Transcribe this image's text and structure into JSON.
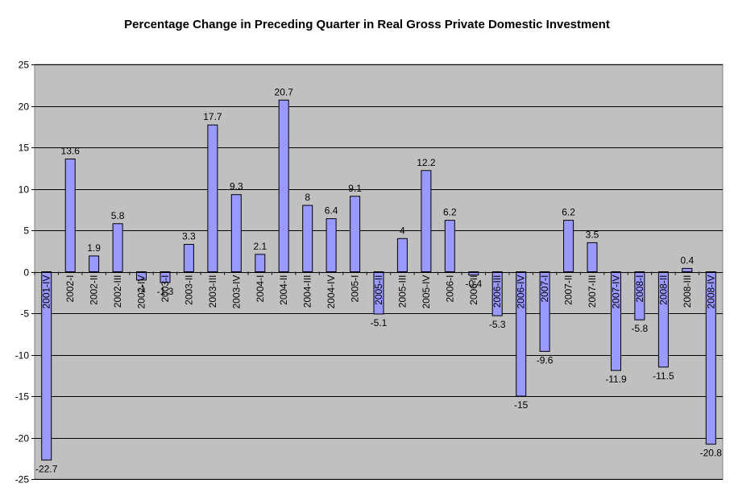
{
  "chart_data": {
    "type": "bar",
    "title": "Percentage Change in Preceding Quarter in Real Gross Private Domestic Investment",
    "xlabel": "",
    "ylabel": "",
    "ylim": [
      -25,
      25
    ],
    "yticks": [
      25,
      20,
      15,
      10,
      5,
      0,
      -5,
      -10,
      -15,
      -20,
      -25
    ],
    "grid": true,
    "legend": "none",
    "categories": [
      "2001-IV",
      "2002-I",
      "2002-II",
      "2002-III",
      "2002-IV",
      "2003-I",
      "2003-II",
      "2003-III",
      "2003-IV",
      "2004-I",
      "2004-II",
      "2004-III",
      "2004-IV",
      "2005-I",
      "2005-II",
      "2005-III",
      "2005-IV",
      "2006-I",
      "2006-II",
      "2006-III",
      "2006-IV",
      "2007-I",
      "2007-II",
      "2007-III",
      "2007-IV",
      "2008-I",
      "2008-II",
      "2008-III",
      "2008-IV"
    ],
    "values": [
      -22.7,
      13.6,
      1.9,
      5.8,
      -1,
      -1.3,
      3.3,
      17.7,
      9.3,
      2.1,
      20.7,
      8,
      6.4,
      9.1,
      -5.1,
      4,
      12.2,
      6.2,
      -0.4,
      -5.3,
      -15,
      -9.6,
      6.2,
      3.5,
      -11.9,
      -5.8,
      -11.5,
      0.4,
      -20.8
    ],
    "data_labels": [
      "-22.7",
      "13.6",
      "1.9",
      "5.8",
      "-1",
      "-1.3",
      "3.3",
      "17.7",
      "9.3",
      "2.1",
      "20.7",
      "8",
      "6.4",
      "9.1",
      "-5.1",
      "4",
      "12.2",
      "6.2",
      "-0.4",
      "-5.3",
      "-15",
      "-9.6",
      "6.2",
      "3.5",
      "-11.9",
      "-5.8",
      "-11.5",
      "0.4",
      "-20.8"
    ],
    "colors": {
      "bar_fill": "#9999ff",
      "bar_stroke": "#000000",
      "plot_bg": "#c0c0c0",
      "grid": "#000000"
    }
  }
}
